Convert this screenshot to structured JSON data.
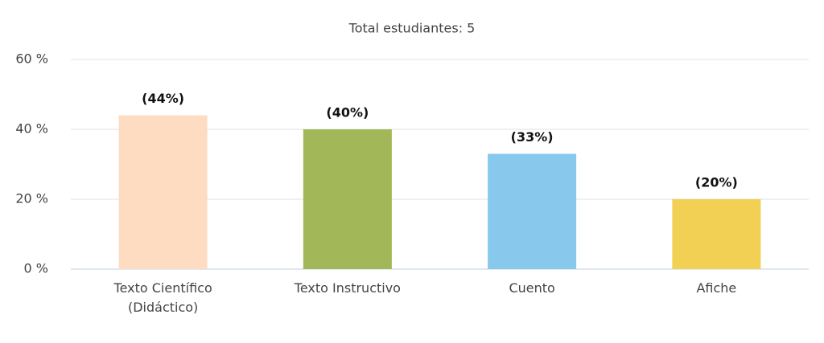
{
  "chart_data": {
    "type": "bar",
    "title": "Total estudiantes: 5",
    "categories": [
      "Texto Científico\n(Didáctico)",
      "Texto Instructivo",
      "Cuento",
      "Afiche"
    ],
    "values": [
      44,
      40,
      33,
      20
    ],
    "value_labels": [
      "(44%)",
      "(40%)",
      "(33%)",
      "(20%)"
    ],
    "colors": [
      "#fddcc2",
      "#a2b858",
      "#87c8ec",
      "#f2d054"
    ],
    "ylim": [
      0,
      60
    ],
    "yticks": [
      {
        "value": 0,
        "label": "0 %"
      },
      {
        "value": 20,
        "label": "20 %"
      },
      {
        "value": 40,
        "label": "40 %"
      },
      {
        "value": 60,
        "label": "60 %"
      }
    ],
    "grid": true
  }
}
